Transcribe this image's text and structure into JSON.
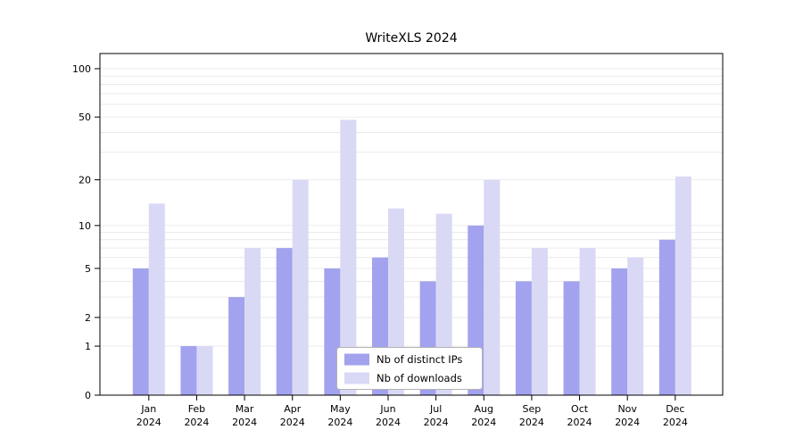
{
  "chart_data": {
    "type": "bar",
    "title": "WriteXLS 2024",
    "scale": "log1p",
    "categories": [
      "Jan",
      "Feb",
      "Mar",
      "Apr",
      "May",
      "Jun",
      "Jul",
      "Aug",
      "Sep",
      "Oct",
      "Nov",
      "Dec"
    ],
    "category_year": "2024",
    "series": [
      {
        "name": "Nb of distinct IPs",
        "color": "#a2a2ee",
        "values": [
          5,
          1,
          3,
          7,
          5,
          6,
          4,
          10,
          4,
          4,
          5,
          8
        ]
      },
      {
        "name": "Nb of downloads",
        "color": "#d9d9f6",
        "values": [
          14,
          1,
          7,
          20,
          48,
          13,
          12,
          20,
          7,
          7,
          6,
          21
        ]
      }
    ],
    "yticks": [
      0,
      1,
      2,
      5,
      10,
      20,
      50,
      100
    ],
    "ylim": [
      0,
      110
    ],
    "grid": "minor-log-horizontal",
    "legend_position": "bottom-center"
  },
  "colors": {
    "grid": "#e9e9e9",
    "axis": "#000000",
    "legend_border": "#b3b3b3",
    "legend_fill": "#ffffff",
    "background": "#ffffff"
  }
}
